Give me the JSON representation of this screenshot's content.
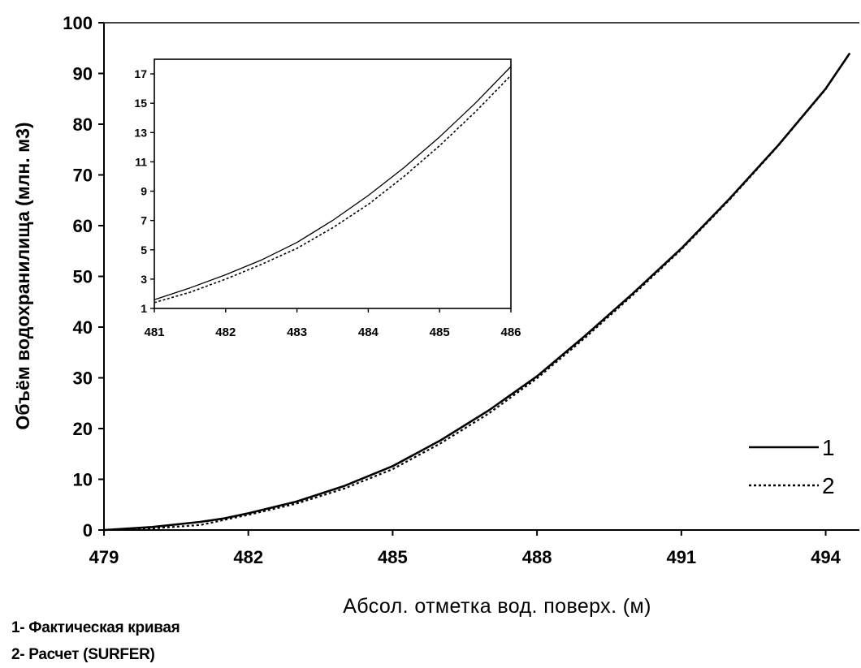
{
  "chart_data": [
    {
      "type": "line",
      "xlabel": "Абсол. отметка вод. поверх. (м)",
      "ylabel": "Объём водохранилища (млн. м3)",
      "xlim": [
        479,
        494.7
      ],
      "ylim": [
        0,
        100
      ],
      "x_ticks": [
        "479",
        "482",
        "485",
        "488",
        "491",
        "494"
      ],
      "y_ticks": [
        "0",
        "10",
        "20",
        "30",
        "40",
        "50",
        "60",
        "70",
        "80",
        "90",
        "100"
      ],
      "grid": false,
      "legend": {
        "placement": "right",
        "labels": [
          "1",
          "2"
        ]
      },
      "series": [
        {
          "name": "1",
          "style": "solid",
          "x": [
            479,
            480,
            481,
            481.5,
            482,
            483,
            484,
            485,
            486,
            487,
            488,
            489,
            490,
            491,
            492,
            493,
            494,
            494.5
          ],
          "y": [
            0,
            0.6,
            1.6,
            2.3,
            3.3,
            5.6,
            8.7,
            12.6,
            17.7,
            23.6,
            30.3,
            38.3,
            46.7,
            55.5,
            65.3,
            75.7,
            87.0,
            94.0
          ]
        },
        {
          "name": "2",
          "style": "dotted",
          "x": [
            479,
            480,
            481,
            481.5,
            482,
            483,
            484,
            485,
            486,
            487,
            488,
            489,
            490,
            491,
            492,
            493,
            494,
            494.5
          ],
          "y": [
            0,
            0.3,
            1.0,
            2.0,
            3.0,
            5.2,
            8.2,
            12.0,
            17.1,
            23.0,
            29.9,
            37.9,
            46.4,
            55.3,
            65.1,
            75.6,
            86.9,
            94.0
          ]
        }
      ]
    },
    {
      "type": "line",
      "xlim": [
        481,
        486
      ],
      "ylim": [
        1,
        18
      ],
      "x_ticks": [
        "481",
        "482",
        "483",
        "484",
        "485",
        "486"
      ],
      "y_ticks": [
        "1",
        "3",
        "5",
        "7",
        "9",
        "11",
        "13",
        "15",
        "17"
      ],
      "grid": false,
      "series": [
        {
          "name": "1",
          "style": "solid",
          "x": [
            481,
            481.5,
            482,
            482.5,
            483,
            483.5,
            484,
            484.5,
            485,
            485.5,
            486
          ],
          "y": [
            1.6,
            2.4,
            3.3,
            4.3,
            5.5,
            7.0,
            8.7,
            10.6,
            12.7,
            15.0,
            17.5
          ]
        },
        {
          "name": "2",
          "style": "dotted",
          "x": [
            481,
            481.5,
            482,
            482.5,
            483,
            483.5,
            484,
            484.5,
            485,
            485.5,
            486
          ],
          "y": [
            1.4,
            2.1,
            3.0,
            4.0,
            5.1,
            6.5,
            8.1,
            10.0,
            12.1,
            14.4,
            16.9
          ]
        }
      ]
    }
  ],
  "footnotes": {
    "line1": "1- Фактическая кривая",
    "line2": "2- Расчет (SURFER)"
  }
}
